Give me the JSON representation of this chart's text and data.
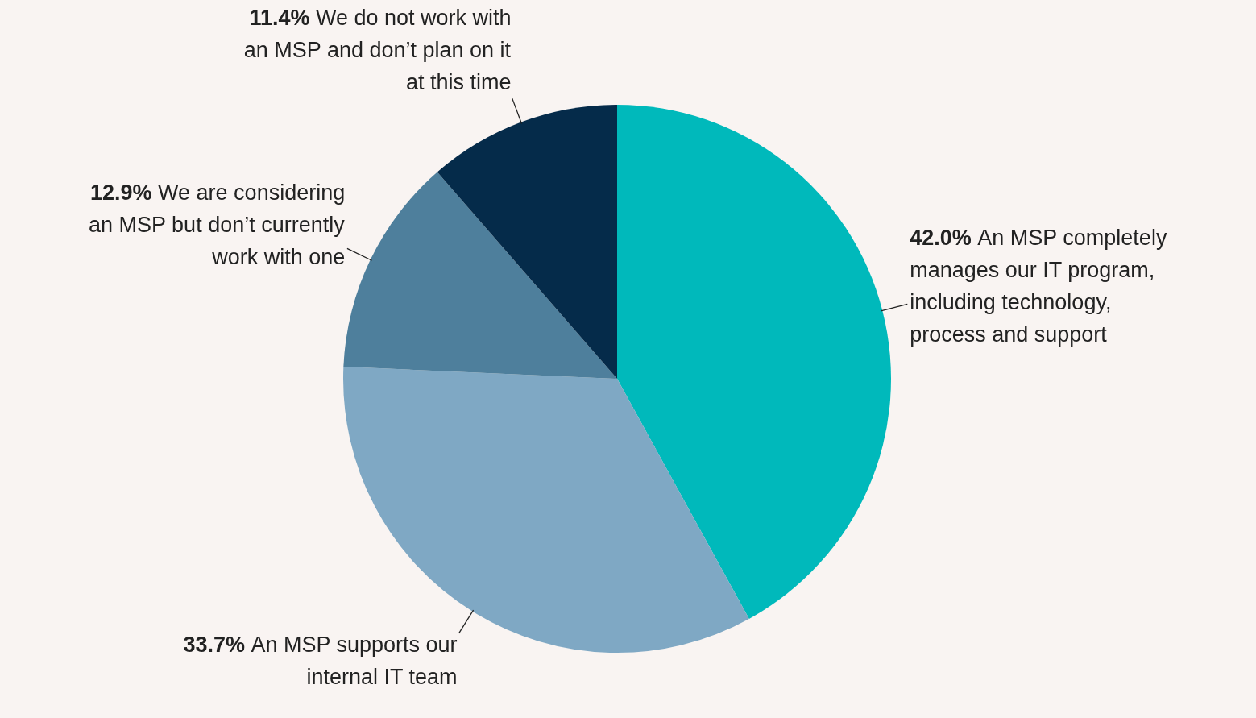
{
  "chart_data": {
    "type": "pie",
    "categories": [
      "An MSP completely manages our IT program, including technology, process and support",
      "An MSP supports our internal IT team",
      "We are considering an MSP but don’t currently work with one",
      "We do not work with an MSP and don’t plan on it at this time"
    ],
    "values": [
      42.0,
      33.7,
      12.9,
      11.4
    ],
    "value_labels": [
      "42.0%",
      "33.7%",
      "12.9%",
      "11.4%"
    ],
    "colors": [
      "#00b9bb",
      "#7fa8c4",
      "#4e7f9c",
      "#052b4a"
    ]
  }
}
